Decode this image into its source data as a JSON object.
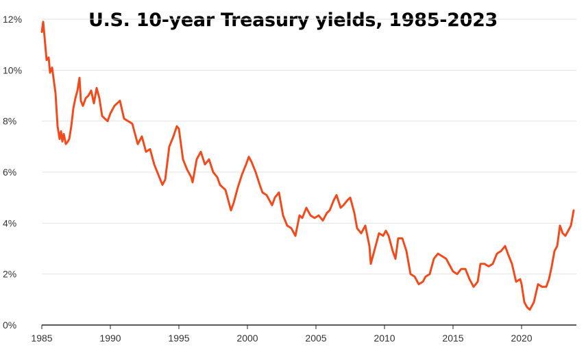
{
  "chart_data": {
    "type": "line",
    "title": "U.S. 10-year Treasury yields, 1985-2023",
    "xlabel": "",
    "ylabel": "",
    "xlim": [
      1985,
      2024
    ],
    "ylim": [
      0,
      12
    ],
    "x_ticks": [
      1985,
      1990,
      1995,
      2000,
      2005,
      2010,
      2015,
      2020
    ],
    "y_ticks": [
      0,
      2,
      4,
      6,
      8,
      10,
      12
    ],
    "y_tick_labels": [
      "0%",
      "2%",
      "4%",
      "6%",
      "8%",
      "10%",
      "12%"
    ],
    "x_tick_labels": [
      "1985",
      "1990",
      "1995",
      "2000",
      "2005",
      "2010",
      "2015",
      "2020"
    ],
    "grid": "horizontal",
    "line_color": "#f24a1c",
    "series": [
      {
        "x": [
          1985.0,
          1985.1,
          1985.2,
          1985.35,
          1985.5,
          1985.6,
          1985.75,
          1985.9,
          1986.0,
          1986.15,
          1986.3,
          1986.4,
          1986.5,
          1986.6,
          1986.75,
          1986.9,
          1987.0,
          1987.15,
          1987.3,
          1987.45,
          1987.6,
          1987.75,
          1987.85,
          1988.0,
          1988.2,
          1988.4,
          1988.6,
          1988.8,
          1989.0,
          1989.2,
          1989.4,
          1989.6,
          1989.8,
          1990.0,
          1990.3,
          1990.5,
          1990.7,
          1991.0,
          1991.3,
          1991.6,
          1991.9,
          1992.0,
          1992.3,
          1992.6,
          1992.9,
          1993.2,
          1993.5,
          1993.8,
          1994.0,
          1994.3,
          1994.6,
          1994.85,
          1995.0,
          1995.3,
          1995.6,
          1995.9,
          1996.0,
          1996.3,
          1996.6,
          1996.9,
          1997.2,
          1997.5,
          1997.8,
          1998.0,
          1998.4,
          1998.8,
          1999.0,
          1999.3,
          1999.6,
          1999.9,
          2000.1,
          2000.3,
          2000.6,
          2000.9,
          2001.1,
          2001.4,
          2001.8,
          2002.0,
          2002.3,
          2002.6,
          2002.9,
          2003.2,
          2003.5,
          2003.8,
          2004.0,
          2004.3,
          2004.6,
          2004.9,
          2005.2,
          2005.5,
          2005.8,
          2006.0,
          2006.3,
          2006.5,
          2006.8,
          2007.0,
          2007.3,
          2007.5,
          2007.8,
          2008.0,
          2008.3,
          2008.6,
          2008.9,
          2009.0,
          2009.3,
          2009.6,
          2009.9,
          2010.1,
          2010.3,
          2010.6,
          2010.8,
          2011.0,
          2011.3,
          2011.6,
          2011.9,
          2012.2,
          2012.5,
          2012.8,
          2013.0,
          2013.3,
          2013.6,
          2013.9,
          2014.2,
          2014.5,
          2014.8,
          2015.0,
          2015.3,
          2015.6,
          2015.9,
          2016.2,
          2016.5,
          2016.8,
          2017.0,
          2017.3,
          2017.6,
          2017.9,
          2018.2,
          2018.5,
          2018.8,
          2019.0,
          2019.3,
          2019.6,
          2019.9,
          2020.0,
          2020.2,
          2020.4,
          2020.6,
          2020.9,
          2021.2,
          2021.5,
          2021.8,
          2022.0,
          2022.2,
          2022.4,
          2022.6,
          2022.8,
          2023.0,
          2023.2,
          2023.4,
          2023.6,
          2023.8
        ],
        "values": [
          11.5,
          11.9,
          11.3,
          10.4,
          10.5,
          9.9,
          10.1,
          9.5,
          9.1,
          7.8,
          7.3,
          7.6,
          7.2,
          7.5,
          7.1,
          7.2,
          7.3,
          7.8,
          8.5,
          8.9,
          9.2,
          9.7,
          8.8,
          8.6,
          8.9,
          9.0,
          9.2,
          8.7,
          9.3,
          8.9,
          8.2,
          8.1,
          8.0,
          8.3,
          8.6,
          8.7,
          8.8,
          8.1,
          8.0,
          7.9,
          7.3,
          7.1,
          7.4,
          6.8,
          6.9,
          6.3,
          5.9,
          5.5,
          5.7,
          7.0,
          7.4,
          7.8,
          7.7,
          6.5,
          6.1,
          5.8,
          5.6,
          6.5,
          6.8,
          6.3,
          6.5,
          6.0,
          5.8,
          5.5,
          5.3,
          4.5,
          4.8,
          5.4,
          5.9,
          6.3,
          6.6,
          6.4,
          6.0,
          5.5,
          5.2,
          5.1,
          4.7,
          5.0,
          5.2,
          4.3,
          3.9,
          3.8,
          3.5,
          4.3,
          4.2,
          4.6,
          4.3,
          4.2,
          4.3,
          4.1,
          4.4,
          4.5,
          4.9,
          5.1,
          4.6,
          4.7,
          4.9,
          5.0,
          4.4,
          3.8,
          3.6,
          3.9,
          3.1,
          2.4,
          3.0,
          3.6,
          3.5,
          3.7,
          3.5,
          2.9,
          2.6,
          3.4,
          3.4,
          2.9,
          2.0,
          1.9,
          1.6,
          1.7,
          1.9,
          2.0,
          2.6,
          2.8,
          2.7,
          2.6,
          2.3,
          2.1,
          2.0,
          2.2,
          2.2,
          1.8,
          1.5,
          1.7,
          2.4,
          2.4,
          2.3,
          2.4,
          2.8,
          2.9,
          3.1,
          2.8,
          2.4,
          1.7,
          1.8,
          1.6,
          0.9,
          0.7,
          0.6,
          0.9,
          1.6,
          1.5,
          1.5,
          1.8,
          2.3,
          2.9,
          3.1,
          3.9,
          3.6,
          3.5,
          3.7,
          3.9,
          4.5
        ]
      }
    ]
  }
}
